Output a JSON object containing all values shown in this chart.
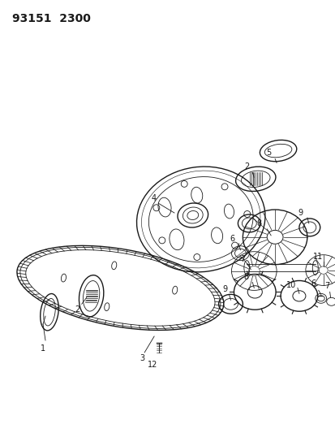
{
  "title": "93151  2300",
  "bg_color": "#ffffff",
  "line_color": "#1a1a1a",
  "fig_width": 4.14,
  "fig_height": 5.33,
  "dpi": 100
}
